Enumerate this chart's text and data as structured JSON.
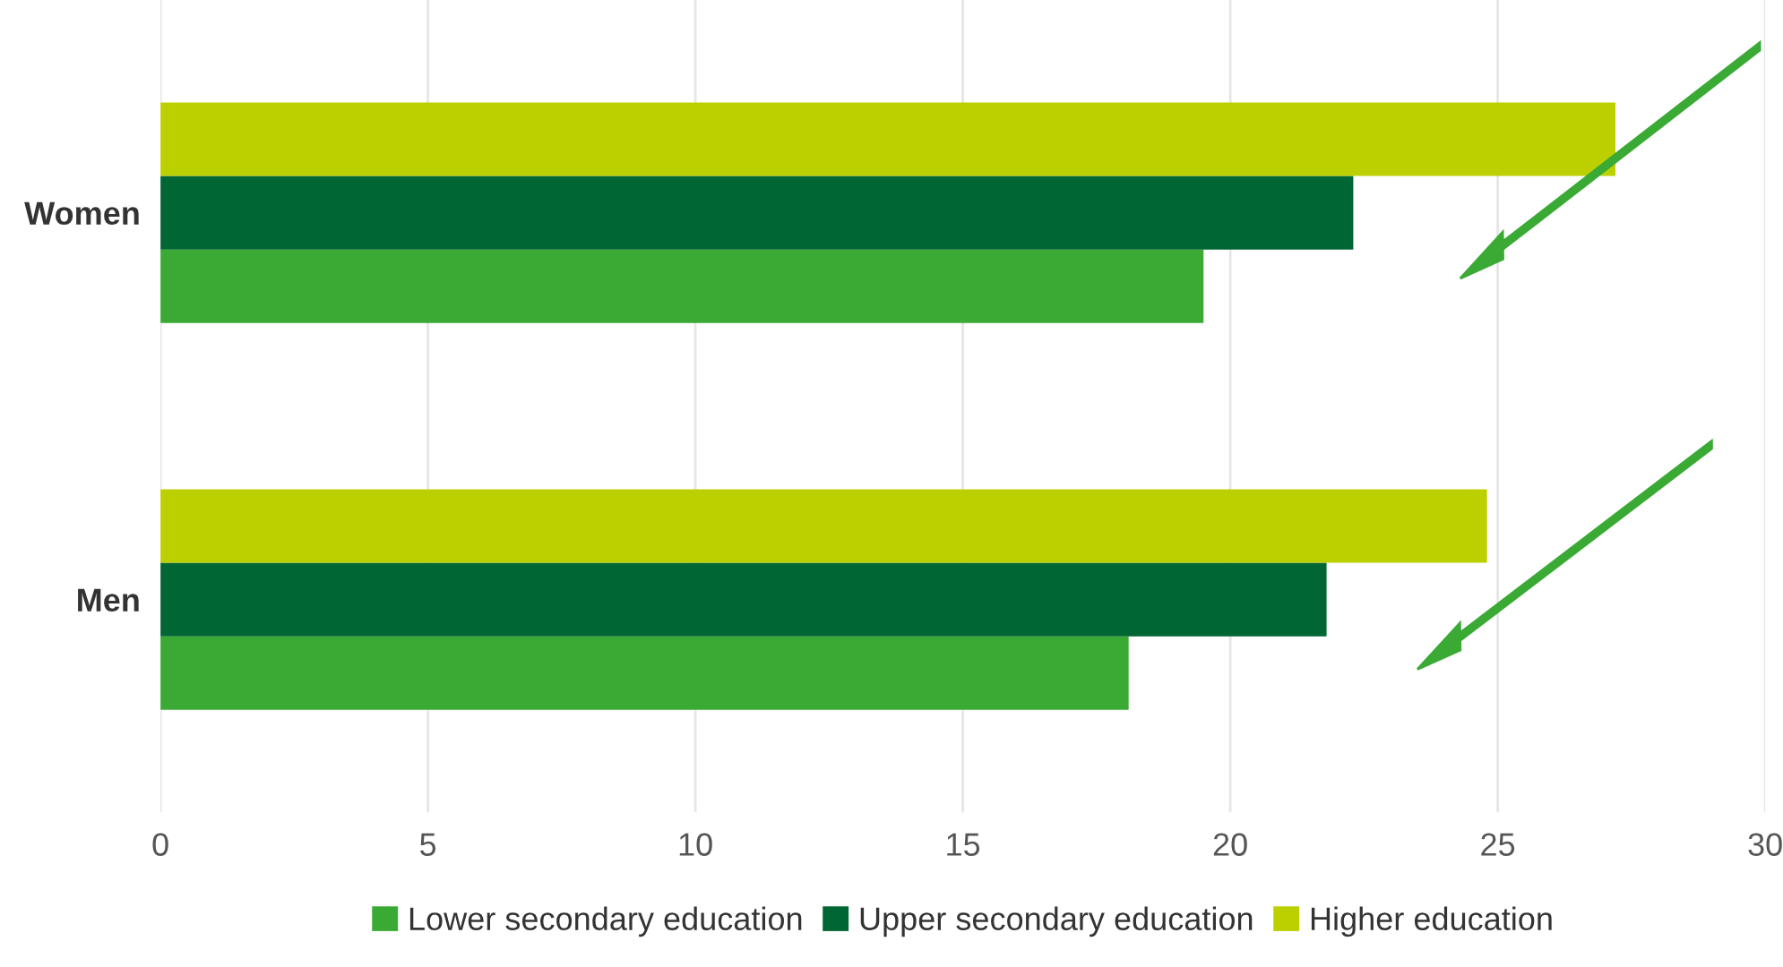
{
  "chart_data": {
    "type": "bar",
    "orientation": "horizontal",
    "categories": [
      "Women",
      "Men"
    ],
    "series": [
      {
        "name": "Lower secondary education",
        "color": "#3aaa35",
        "values": [
          19.5,
          18.1
        ]
      },
      {
        "name": "Upper secondary education",
        "color": "#006633",
        "values": [
          22.3,
          21.8
        ]
      },
      {
        "name": "Higher education",
        "color": "#bcd000",
        "values": [
          27.2,
          24.8
        ]
      }
    ],
    "xlim": [
      0,
      30
    ],
    "xticks": [
      0,
      5,
      10,
      15,
      20,
      25,
      30
    ],
    "grid": "x",
    "legend": "bottom"
  }
}
